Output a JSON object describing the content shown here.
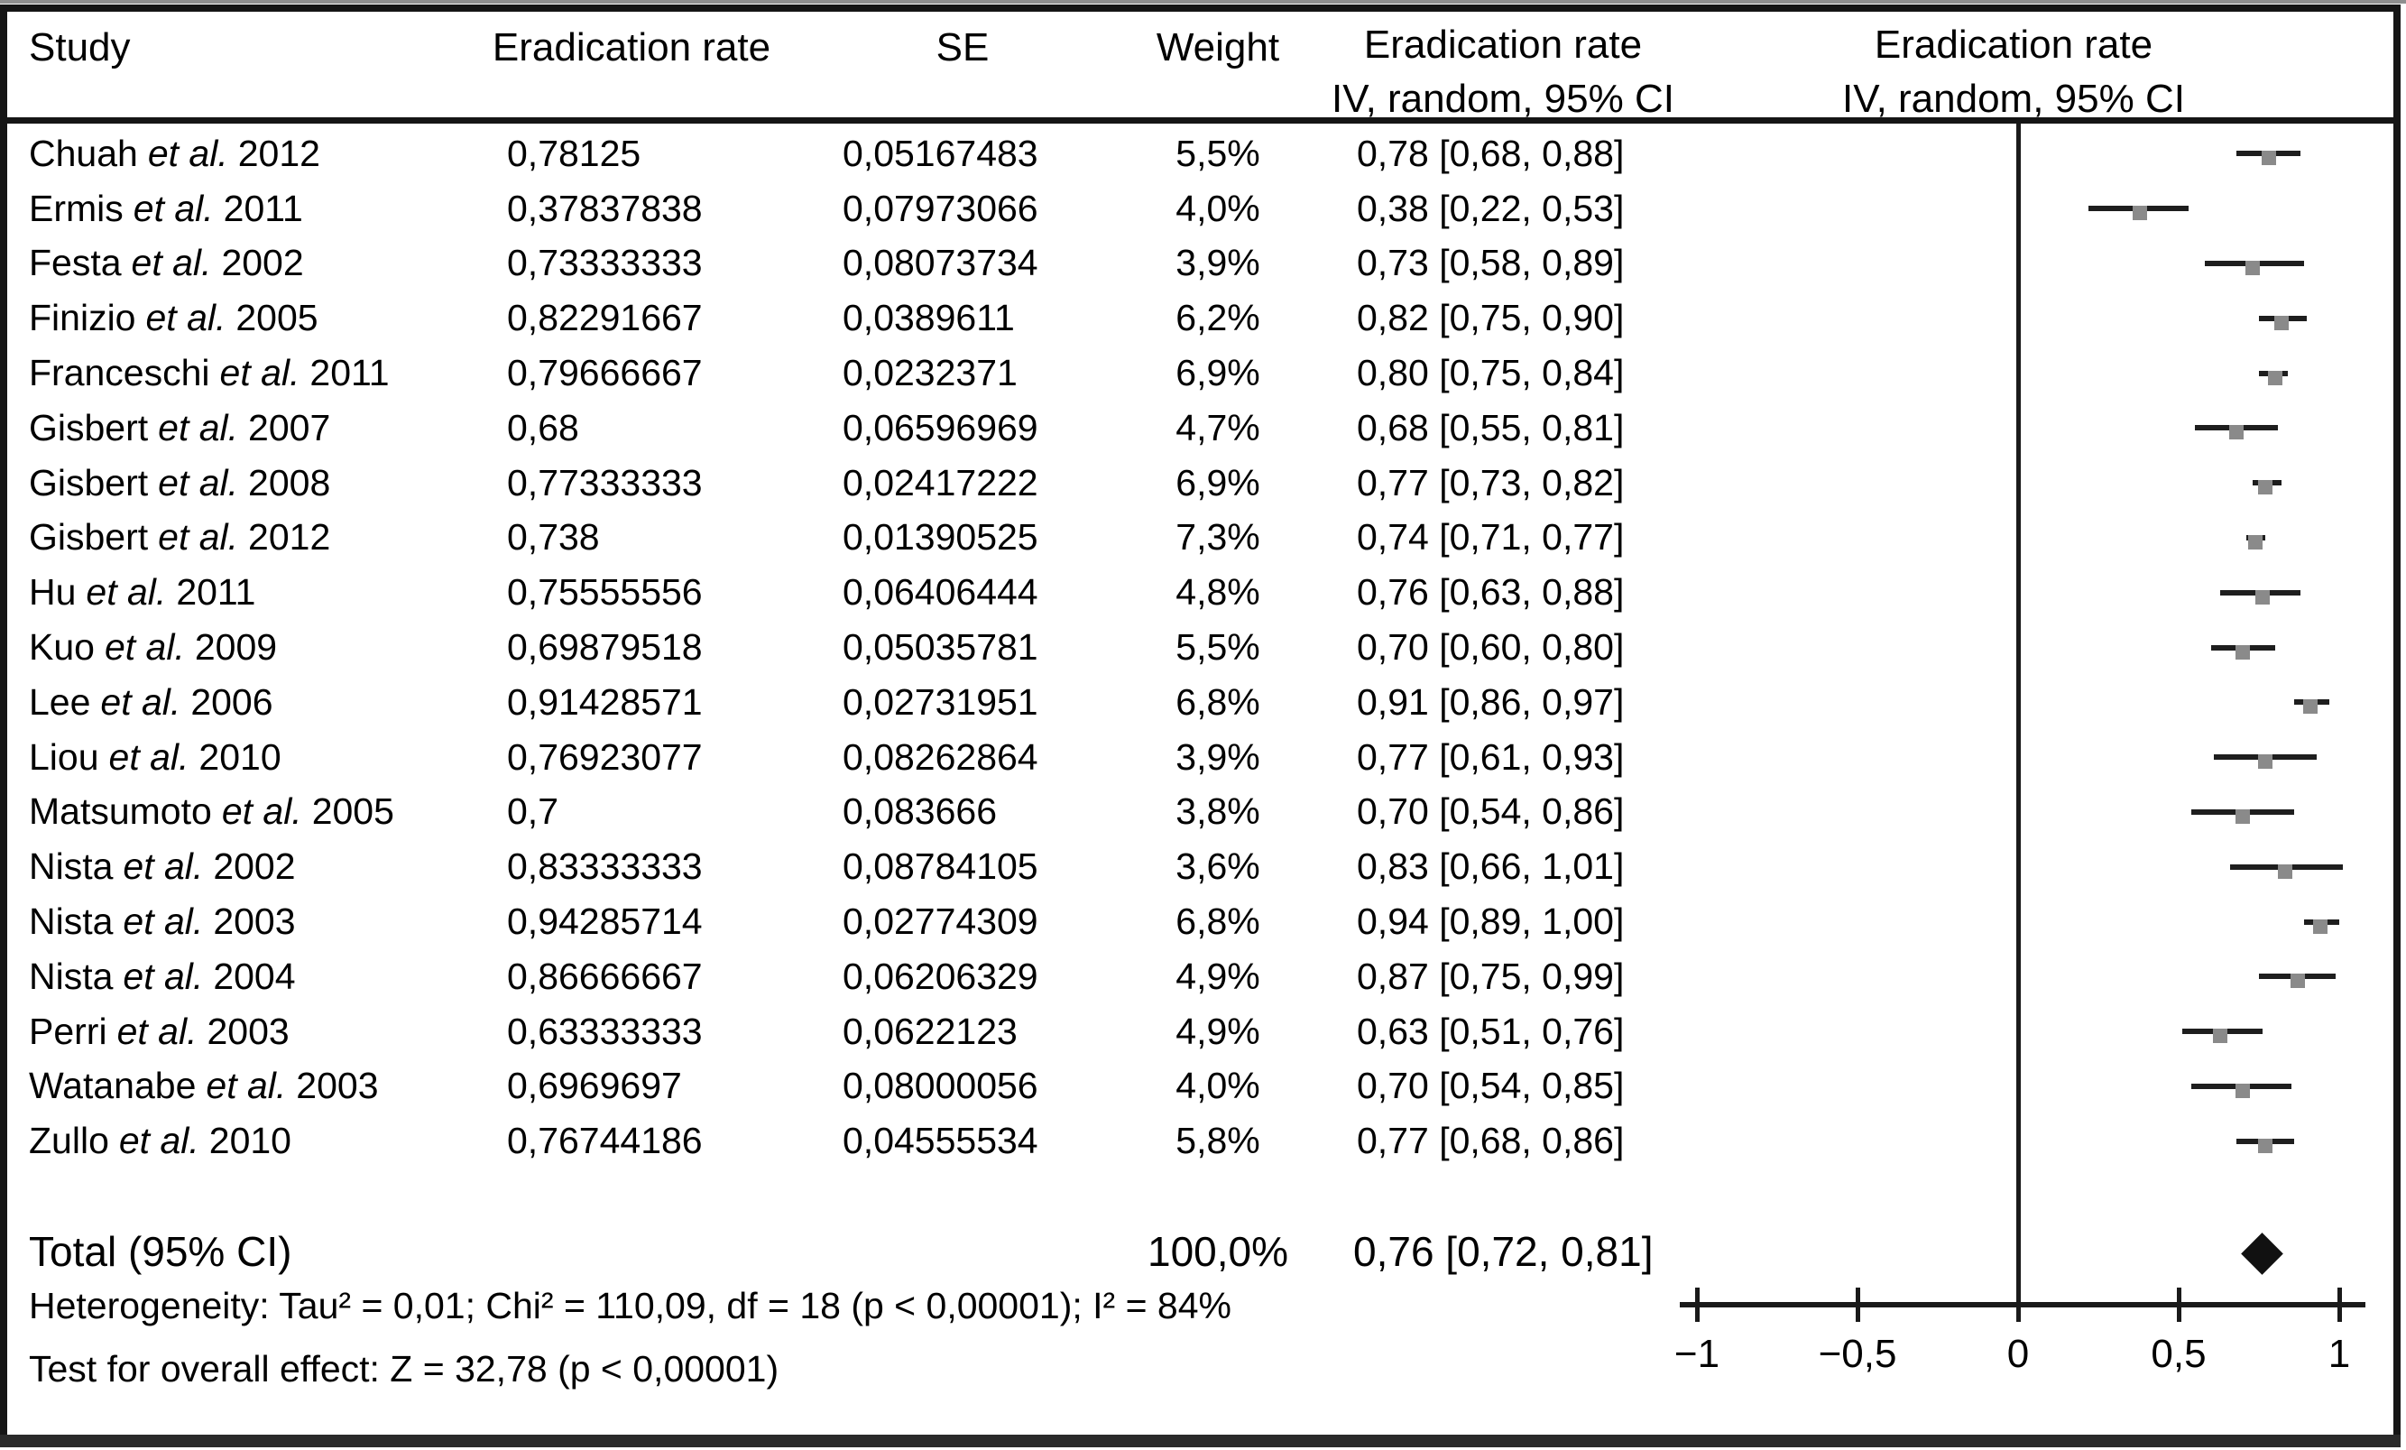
{
  "header": {
    "col_study": "Study",
    "col_rate": "Eradication rate",
    "col_se": "SE",
    "col_weight": "Weight",
    "col_ci_line1": "Eradication rate",
    "col_ci_line2": "IV, random, 95% CI",
    "col_plot_line1": "Eradication rate",
    "col_plot_line2": "IV, random, 95% CI"
  },
  "rows": [
    {
      "study_name": "Chuah",
      "etal": "et al.",
      "year": "2012",
      "rate": "0,78125",
      "se": "0,05167483",
      "weight": "5,5%",
      "ci": "0,78 [0,68, 0,88]",
      "est": 0.78,
      "lo": 0.68,
      "hi": 0.88
    },
    {
      "study_name": "Ermis",
      "etal": "et al.",
      "year": "2011",
      "rate": "0,37837838",
      "se": "0,07973066",
      "weight": "4,0%",
      "ci": "0,38 [0,22, 0,53]",
      "est": 0.38,
      "lo": 0.22,
      "hi": 0.53
    },
    {
      "study_name": "Festa",
      "etal": "et al.",
      "year": "2002",
      "rate": "0,73333333",
      "se": "0,08073734",
      "weight": "3,9%",
      "ci": "0,73 [0,58, 0,89]",
      "est": 0.73,
      "lo": 0.58,
      "hi": 0.89
    },
    {
      "study_name": "Finizio",
      "etal": "et al.",
      "year": "2005",
      "rate": "0,82291667",
      "se": "0,0389611",
      "weight": "6,2%",
      "ci": "0,82 [0,75, 0,90]",
      "est": 0.82,
      "lo": 0.75,
      "hi": 0.9
    },
    {
      "study_name": "Franceschi",
      "etal": "et al.",
      "year": "2011",
      "rate": "0,79666667",
      "se": "0,0232371",
      "weight": "6,9%",
      "ci": "0,80 [0,75, 0,84]",
      "est": 0.8,
      "lo": 0.75,
      "hi": 0.84
    },
    {
      "study_name": "Gisbert",
      "etal": "et al.",
      "year": "2007",
      "rate": "0,68",
      "se": "0,06596969",
      "weight": "4,7%",
      "ci": "0,68 [0,55, 0,81]",
      "est": 0.68,
      "lo": 0.55,
      "hi": 0.81
    },
    {
      "study_name": "Gisbert",
      "etal": "et al.",
      "year": "2008",
      "rate": "0,77333333",
      "se": "0,02417222",
      "weight": "6,9%",
      "ci": "0,77 [0,73, 0,82]",
      "est": 0.77,
      "lo": 0.73,
      "hi": 0.82
    },
    {
      "study_name": "Gisbert",
      "etal": "et al.",
      "year": "2012",
      "rate": "0,738",
      "se": "0,01390525",
      "weight": "7,3%",
      "ci": "0,74 [0,71, 0,77]",
      "est": 0.74,
      "lo": 0.71,
      "hi": 0.77
    },
    {
      "study_name": "Hu",
      "etal": "et al.",
      "year": "2011",
      "rate": "0,75555556",
      "se": "0,06406444",
      "weight": "4,8%",
      "ci": "0,76 [0,63, 0,88]",
      "est": 0.76,
      "lo": 0.63,
      "hi": 0.88
    },
    {
      "study_name": "Kuo",
      "etal": "et al.",
      "year": "2009",
      "rate": "0,69879518",
      "se": "0,05035781",
      "weight": "5,5%",
      "ci": "0,70 [0,60, 0,80]",
      "est": 0.7,
      "lo": 0.6,
      "hi": 0.8
    },
    {
      "study_name": "Lee",
      "etal": "et al.",
      "year": "2006",
      "rate": "0,91428571",
      "se": "0,02731951",
      "weight": "6,8%",
      "ci": "0,91 [0,86, 0,97]",
      "est": 0.91,
      "lo": 0.86,
      "hi": 0.97
    },
    {
      "study_name": "Liou",
      "etal": "et al.",
      "year": "2010",
      "rate": "0,76923077",
      "se": "0,08262864",
      "weight": "3,9%",
      "ci": "0,77 [0,61, 0,93]",
      "est": 0.77,
      "lo": 0.61,
      "hi": 0.93
    },
    {
      "study_name": "Matsumoto",
      "etal": "et al.",
      "year": "2005",
      "rate": "0,7",
      "se": "0,083666",
      "weight": "3,8%",
      "ci": "0,70 [0,54, 0,86]",
      "est": 0.7,
      "lo": 0.54,
      "hi": 0.86
    },
    {
      "study_name": "Nista",
      "etal": "et al.",
      "year": "2002",
      "rate": "0,83333333",
      "se": "0,08784105",
      "weight": "3,6%",
      "ci": "0,83 [0,66, 1,01]",
      "est": 0.83,
      "lo": 0.66,
      "hi": 1.01
    },
    {
      "study_name": "Nista",
      "etal": "et al.",
      "year": "2003",
      "rate": "0,94285714",
      "se": "0,02774309",
      "weight": "6,8%",
      "ci": "0,94 [0,89, 1,00]",
      "est": 0.94,
      "lo": 0.89,
      "hi": 1.0
    },
    {
      "study_name": "Nista",
      "etal": "et al.",
      "year": "2004",
      "rate": "0,86666667",
      "se": "0,06206329",
      "weight": "4,9%",
      "ci": "0,87 [0,75, 0,99]",
      "est": 0.87,
      "lo": 0.75,
      "hi": 0.99
    },
    {
      "study_name": "Perri",
      "etal": "et al.",
      "year": "2003",
      "rate": "0,63333333",
      "se": "0,0622123",
      "weight": "4,9%",
      "ci": "0,63 [0,51, 0,76]",
      "est": 0.63,
      "lo": 0.51,
      "hi": 0.76
    },
    {
      "study_name": "Watanabe",
      "etal": "et al.",
      "year": "2003",
      "rate": "0,6969697",
      "se": "0,08000056",
      "weight": "4,0%",
      "ci": "0,70 [0,54, 0,85]",
      "est": 0.7,
      "lo": 0.54,
      "hi": 0.85
    },
    {
      "study_name": "Zullo",
      "etal": "et al.",
      "year": "2010",
      "rate": "0,76744186",
      "se": "0,04555534",
      "weight": "5,8%",
      "ci": "0,77 [0,68, 0,86]",
      "est": 0.77,
      "lo": 0.68,
      "hi": 0.86
    }
  ],
  "total_row": {
    "label": "Total (95% CI)",
    "weight": "100,0%",
    "ci": "0,76 [0,72, 0,81]",
    "est": 0.76,
    "lo": 0.72,
    "hi": 0.81
  },
  "footer": {
    "heterogeneity": "Heterogeneity: Tau² = 0,01; Chi² = 110,09, df = 18 (p < 0,00001); I² = 84%",
    "overall_effect": "Test for overall effect: Z = 32,78 (p < 0,00001)"
  },
  "axis": {
    "tick_values": [
      -1,
      -0.5,
      0,
      0.5,
      1
    ],
    "tick_labels": [
      "−1",
      "−0,5",
      "0",
      "0,5",
      "1"
    ]
  },
  "colors": {
    "ci_line": "#1e1e1e",
    "estimate_square": "#8a8a8a",
    "diamond": "#111111",
    "border": "#151515"
  },
  "chart_data": {
    "type": "scatter",
    "subtype": "forest_plot_meta_analysis",
    "title": "Eradication rate IV, random, 95% CI",
    "categories": [
      "Chuah et al. 2012",
      "Ermis et al. 2011",
      "Festa et al. 2002",
      "Finizio et al. 2005",
      "Franceschi et al. 2011",
      "Gisbert et al. 2007",
      "Gisbert et al. 2008",
      "Gisbert et al. 2012",
      "Hu et al. 2011",
      "Kuo et al. 2009",
      "Lee et al. 2006",
      "Liou et al. 2010",
      "Matsumoto et al. 2005",
      "Nista et al. 2002",
      "Nista et al. 2003",
      "Nista et al. 2004",
      "Perri et al. 2003",
      "Watanabe et al. 2003",
      "Zullo et al. 2010"
    ],
    "series": [
      {
        "name": "eradication_rate",
        "values": [
          0.78125,
          0.37837838,
          0.73333333,
          0.82291667,
          0.79666667,
          0.68,
          0.77333333,
          0.738,
          0.75555556,
          0.69879518,
          0.91428571,
          0.76923077,
          0.7,
          0.83333333,
          0.94285714,
          0.86666667,
          0.63333333,
          0.6969697,
          0.76744186
        ]
      },
      {
        "name": "se",
        "values": [
          0.05167483,
          0.07973066,
          0.08073734,
          0.0389611,
          0.0232371,
          0.06596969,
          0.02417222,
          0.01390525,
          0.06406444,
          0.05035781,
          0.02731951,
          0.08262864,
          0.083666,
          0.08784105,
          0.02774309,
          0.06206329,
          0.0622123,
          0.08000056,
          0.04555534
        ]
      },
      {
        "name": "weight_pct",
        "values": [
          5.5,
          4.0,
          3.9,
          6.2,
          6.9,
          4.7,
          6.9,
          7.3,
          4.8,
          5.5,
          6.8,
          3.9,
          3.8,
          3.6,
          6.8,
          4.9,
          4.9,
          4.0,
          5.8
        ]
      },
      {
        "name": "estimate",
        "values": [
          0.78,
          0.38,
          0.73,
          0.82,
          0.8,
          0.68,
          0.77,
          0.74,
          0.76,
          0.7,
          0.91,
          0.77,
          0.7,
          0.83,
          0.94,
          0.87,
          0.63,
          0.7,
          0.77
        ]
      },
      {
        "name": "ci_lower",
        "values": [
          0.68,
          0.22,
          0.58,
          0.75,
          0.75,
          0.55,
          0.73,
          0.71,
          0.63,
          0.6,
          0.86,
          0.61,
          0.54,
          0.66,
          0.89,
          0.75,
          0.51,
          0.54,
          0.68
        ]
      },
      {
        "name": "ci_upper",
        "values": [
          0.88,
          0.53,
          0.89,
          0.9,
          0.84,
          0.81,
          0.82,
          0.77,
          0.88,
          0.8,
          0.97,
          0.93,
          0.86,
          1.01,
          1.0,
          0.99,
          0.76,
          0.85,
          0.86
        ]
      }
    ],
    "total": {
      "label": "Total (95% CI)",
      "estimate": 0.76,
      "ci_lower": 0.72,
      "ci_upper": 0.81,
      "weight_pct": 100.0
    },
    "xlim": [
      -1,
      1
    ],
    "x_ticks": [
      -1,
      -0.5,
      0,
      0.5,
      1
    ],
    "x_tick_labels": [
      "−1",
      "−0,5",
      "0",
      "0,5",
      "1"
    ],
    "grid": false,
    "legend": "none",
    "marker": "gray_square_with_black_ci_line",
    "total_marker": "black_diamond"
  }
}
